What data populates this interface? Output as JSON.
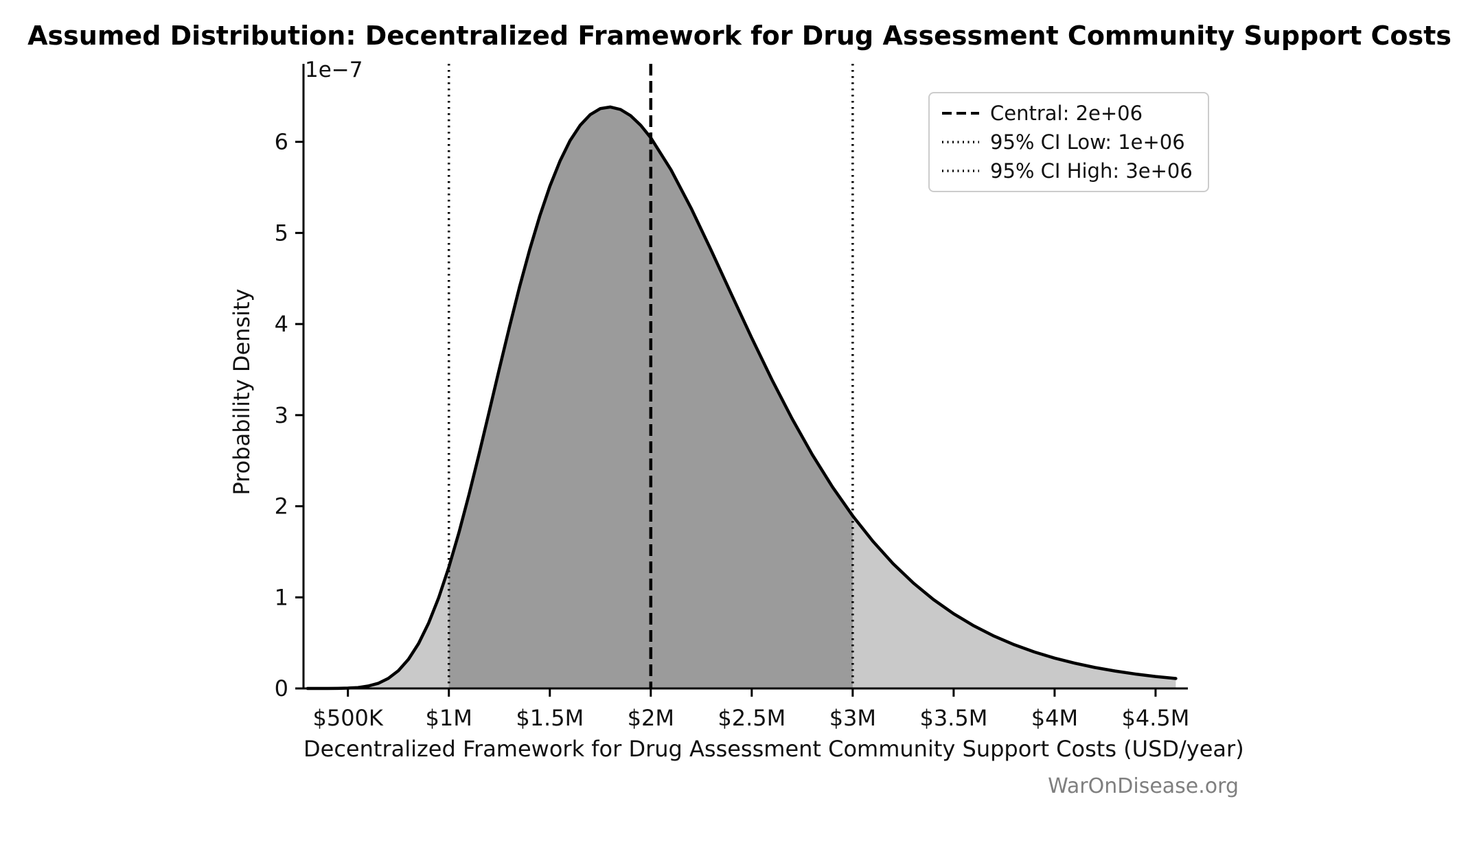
{
  "chart_data": {
    "type": "area",
    "title": "Assumed Distribution: Decentralized Framework for Drug Assessment Community Support Costs",
    "xlabel": "Decentralized Framework for Drug Assessment Community Support Costs (USD/year)",
    "ylabel": "Probability Density",
    "y_offset_label": "1e−7",
    "y_units": "1e-7 per USD",
    "x_units": "USD, in millions",
    "grid": false,
    "legend_position": "upper right",
    "xlim": [
      0.28,
      4.66
    ],
    "ylim": [
      0,
      6.6
    ],
    "x_ticks": [
      {
        "value": 0.5,
        "label": "$500K"
      },
      {
        "value": 1.0,
        "label": "$1M"
      },
      {
        "value": 1.5,
        "label": "$1.5M"
      },
      {
        "value": 2.0,
        "label": "$2M"
      },
      {
        "value": 2.5,
        "label": "$2.5M"
      },
      {
        "value": 3.0,
        "label": "$3M"
      },
      {
        "value": 3.5,
        "label": "$3.5M"
      },
      {
        "value": 4.0,
        "label": "$4M"
      },
      {
        "value": 4.5,
        "label": "$4.5M"
      }
    ],
    "y_ticks": [
      0,
      1,
      2,
      3,
      4,
      5,
      6
    ],
    "central": {
      "value": 2.0,
      "label": "Central: 2e+06"
    },
    "ci_low": {
      "value": 1.0,
      "label": "95% CI Low: 1e+06"
    },
    "ci_high": {
      "value": 3.0,
      "label": "95% CI High: 3e+06"
    },
    "legend": [
      {
        "label": "Central: 2e+06",
        "style": "dashed"
      },
      {
        "label": "95% CI Low: 1e+06",
        "style": "dotted"
      },
      {
        "label": "95% CI High: 3e+06",
        "style": "dotted"
      }
    ],
    "curve": {
      "x": [
        0.3,
        0.35,
        0.4,
        0.45,
        0.5,
        0.55,
        0.6,
        0.65,
        0.7,
        0.75,
        0.8,
        0.85,
        0.9,
        0.95,
        1.0,
        1.05,
        1.1,
        1.15,
        1.2,
        1.25,
        1.3,
        1.35,
        1.4,
        1.45,
        1.5,
        1.55,
        1.6,
        1.65,
        1.7,
        1.75,
        1.8,
        1.85,
        1.9,
        1.95,
        2.0,
        2.1,
        2.2,
        2.3,
        2.4,
        2.5,
        2.6,
        2.7,
        2.8,
        2.9,
        3.0,
        3.1,
        3.2,
        3.3,
        3.4,
        3.5,
        3.6,
        3.7,
        3.8,
        3.9,
        4.0,
        4.1,
        4.2,
        4.3,
        4.4,
        4.5,
        4.6
      ],
      "y": [
        0.0,
        0.0,
        0.0,
        0.001,
        0.004,
        0.01,
        0.026,
        0.056,
        0.11,
        0.195,
        0.32,
        0.493,
        0.719,
        0.998,
        1.331,
        1.711,
        2.13,
        2.577,
        3.04,
        3.508,
        3.966,
        4.406,
        4.816,
        5.186,
        5.512,
        5.788,
        6.013,
        6.181,
        6.299,
        6.365,
        6.382,
        6.355,
        6.287,
        6.182,
        6.045,
        5.694,
        5.271,
        4.805,
        4.324,
        3.848,
        3.39,
        2.961,
        2.567,
        2.212,
        1.894,
        1.615,
        1.37,
        1.158,
        0.976,
        0.82,
        0.687,
        0.575,
        0.48,
        0.4,
        0.333,
        0.277,
        0.23,
        0.191,
        0.158,
        0.131,
        0.109
      ]
    },
    "colors": {
      "line": "#000000",
      "fill_outer": "#c9c9c9",
      "fill_ci": "#9b9b9b",
      "axis": "#000000",
      "watermark": "#7f7f7f"
    },
    "watermark": "WarOnDisease.org"
  }
}
